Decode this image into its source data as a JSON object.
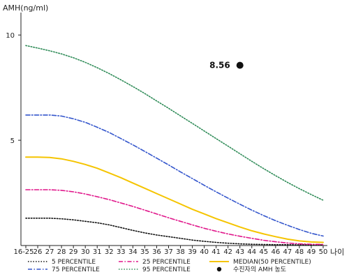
{
  "chart_data": {
    "type": "line",
    "ylabel": "AMH(ng/ml)",
    "xlabel": "나이",
    "ylim": [
      0,
      11
    ],
    "yticks": [
      5,
      10
    ],
    "categories": [
      "16-25",
      "26",
      "27",
      "28",
      "29",
      "30",
      "31",
      "32",
      "33",
      "34",
      "35",
      "36",
      "37",
      "38",
      "39",
      "40",
      "41",
      "42",
      "43",
      "44",
      "45",
      "46",
      "47",
      "48",
      "49",
      "50"
    ],
    "series": [
      {
        "name": "5 PERCENTILE",
        "color": "#111111",
        "style": "dotted",
        "values": [
          1.3,
          1.3,
          1.3,
          1.27,
          1.22,
          1.15,
          1.08,
          0.98,
          0.85,
          0.72,
          0.6,
          0.5,
          0.42,
          0.34,
          0.26,
          0.2,
          0.15,
          0.11,
          0.08,
          0.06,
          0.05,
          0.04,
          0.04,
          0.03,
          0.03,
          0.03
        ]
      },
      {
        "name": "25 PERCENTILE",
        "color": "#e0158a",
        "style": "dashdot",
        "values": [
          2.65,
          2.65,
          2.65,
          2.62,
          2.55,
          2.45,
          2.32,
          2.18,
          2.02,
          1.86,
          1.68,
          1.5,
          1.32,
          1.15,
          0.98,
          0.82,
          0.68,
          0.55,
          0.44,
          0.34,
          0.25,
          0.18,
          0.12,
          0.08,
          0.06,
          0.05
        ]
      },
      {
        "name": "MEDIAN(50 PERCENTILE)",
        "color": "#f5c400",
        "style": "solid",
        "values": [
          4.2,
          4.2,
          4.18,
          4.12,
          4.0,
          3.85,
          3.67,
          3.45,
          3.22,
          2.97,
          2.72,
          2.47,
          2.22,
          1.97,
          1.72,
          1.5,
          1.28,
          1.08,
          0.88,
          0.7,
          0.55,
          0.42,
          0.3,
          0.22,
          0.17,
          0.15
        ]
      },
      {
        "name": "75 PERCENTILE",
        "color": "#3355cc",
        "style": "dashdot",
        "values": [
          6.2,
          6.2,
          6.2,
          6.15,
          6.02,
          5.85,
          5.62,
          5.37,
          5.08,
          4.78,
          4.47,
          4.15,
          3.83,
          3.5,
          3.18,
          2.86,
          2.55,
          2.25,
          1.96,
          1.68,
          1.42,
          1.18,
          0.96,
          0.76,
          0.58,
          0.45
        ]
      },
      {
        "name": "95 PERCENTILE",
        "color": "#2e8b57",
        "style": "dotted",
        "values": [
          9.5,
          9.38,
          9.25,
          9.1,
          8.92,
          8.7,
          8.45,
          8.17,
          7.87,
          7.55,
          7.22,
          6.87,
          6.52,
          6.16,
          5.8,
          5.44,
          5.08,
          4.72,
          4.36,
          4.0,
          3.65,
          3.32,
          3.0,
          2.7,
          2.42,
          2.15
        ]
      }
    ],
    "marker": {
      "name": "수진자의 AMH 농도",
      "category": "43",
      "value": 8.56,
      "label": "8.56",
      "color": "#111111"
    },
    "legend_position": "bottom"
  }
}
